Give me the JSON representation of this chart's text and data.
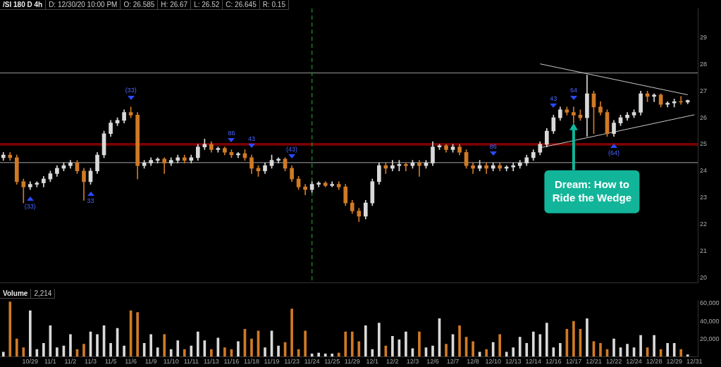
{
  "chart_data": [
    {
      "type": "candlestick",
      "title": "/SI 180 D 4h",
      "annotations": [
        "D: 12/30/20 10:00 PM",
        "O: 26.585",
        "H: 26.67",
        "L: 26.52",
        "C: 26.645",
        "R: 0.15",
        {
          "text": "(33)",
          "x": "10/29",
          "y": 23.3
        },
        {
          "text": "33",
          "x": "11/3",
          "y": 23.5
        },
        {
          "text": "(33)",
          "x": "11/6",
          "y": 26.4
        },
        {
          "text": "86",
          "x": "11/16",
          "y": 24.8
        },
        {
          "text": "43",
          "x": "11/18",
          "y": 24.6
        },
        {
          "text": "(43)",
          "x": "11/23",
          "y": 24.2
        },
        {
          "text": "86",
          "x": "12/10",
          "y": 24.3
        },
        {
          "text": "43",
          "x": "12/16",
          "y": 26.1
        },
        {
          "text": "64",
          "x": "12/17",
          "y": 26.4
        },
        {
          "text": "(64)",
          "x": "12/22",
          "y": 25.3
        },
        {
          "text": "Dream: How to Ride the Wedge",
          "x": "12/17",
          "y": 25.8
        }
      ],
      "categories": [
        null,
        null,
        null,
        null,
        "10/29",
        null,
        null,
        "11/1",
        null,
        null,
        "11/2",
        null,
        null,
        "11/3",
        null,
        null,
        "11/5",
        null,
        null,
        "11/6",
        null,
        null,
        "11/9",
        null,
        null,
        "11/10",
        null,
        null,
        "11/11",
        null,
        null,
        "11/13",
        null,
        null,
        "11/16",
        null,
        null,
        "11/18",
        null,
        null,
        "11/19",
        null,
        null,
        "11/23",
        null,
        null,
        "11/24",
        null,
        null,
        "11/25",
        null,
        null,
        "11/29",
        null,
        null,
        "12/1",
        null,
        null,
        "12/2",
        null,
        null,
        "12/3",
        null,
        null,
        "12/6",
        null,
        null,
        "12/7",
        null,
        null,
        "12/8",
        null,
        null,
        "12/10",
        null,
        null,
        "12/13",
        null,
        null,
        "12/14",
        null,
        null,
        "12/16",
        null,
        null,
        "12/17",
        null,
        null,
        "12/21",
        null,
        null,
        "12/22",
        null,
        null,
        "12/24",
        null,
        null,
        "12/28",
        null,
        null,
        "12/29",
        null,
        null,
        "12/31"
      ],
      "ohlc": [
        [
          24.5,
          24.7,
          24.4,
          24.6
        ],
        [
          24.6,
          24.7,
          24.4,
          24.5
        ],
        [
          24.5,
          24.6,
          23.5,
          23.6
        ],
        [
          23.6,
          23.7,
          22.8,
          23.4
        ],
        [
          23.4,
          23.6,
          23.3,
          23.5
        ],
        [
          23.5,
          23.6,
          23.4,
          23.55
        ],
        [
          23.55,
          23.8,
          23.4,
          23.7
        ],
        [
          23.7,
          24.0,
          23.6,
          23.9
        ],
        [
          23.9,
          24.2,
          23.8,
          24.1
        ],
        [
          24.1,
          24.3,
          24.0,
          24.2
        ],
        [
          24.2,
          24.4,
          24.1,
          24.3
        ],
        [
          24.3,
          24.4,
          23.9,
          24.0
        ],
        [
          24.0,
          24.1,
          22.9,
          23.6
        ],
        [
          23.6,
          24.1,
          23.5,
          24.0
        ],
        [
          24.0,
          24.7,
          23.9,
          24.6
        ],
        [
          24.6,
          25.5,
          24.5,
          25.4
        ],
        [
          25.4,
          25.9,
          25.3,
          25.8
        ],
        [
          25.8,
          26.0,
          25.7,
          25.9
        ],
        [
          25.9,
          26.3,
          25.8,
          26.2
        ],
        [
          26.2,
          26.4,
          26.0,
          26.1
        ],
        [
          26.1,
          26.2,
          23.7,
          24.2
        ],
        [
          24.2,
          24.4,
          24.1,
          24.3
        ],
        [
          24.3,
          24.5,
          24.2,
          24.4
        ],
        [
          24.4,
          24.5,
          24.3,
          24.45
        ],
        [
          24.45,
          24.5,
          23.9,
          24.3
        ],
        [
          24.3,
          24.5,
          24.2,
          24.4
        ],
        [
          24.4,
          24.6,
          24.3,
          24.5
        ],
        [
          24.5,
          24.6,
          24.3,
          24.4
        ],
        [
          24.4,
          24.6,
          24.3,
          24.5
        ],
        [
          24.5,
          25.0,
          24.4,
          24.9
        ],
        [
          24.9,
          25.2,
          24.8,
          25.0
        ],
        [
          25.0,
          25.1,
          24.7,
          24.8
        ],
        [
          24.8,
          24.9,
          24.7,
          24.85
        ],
        [
          24.85,
          24.9,
          24.6,
          24.7
        ],
        [
          24.7,
          24.8,
          24.5,
          24.6
        ],
        [
          24.6,
          24.7,
          24.5,
          24.65
        ],
        [
          24.65,
          24.8,
          24.4,
          24.5
        ],
        [
          24.5,
          24.6,
          23.9,
          24.1
        ],
        [
          24.1,
          24.2,
          23.8,
          24.0
        ],
        [
          24.0,
          24.3,
          23.9,
          24.2
        ],
        [
          24.2,
          24.6,
          24.1,
          24.4
        ],
        [
          24.4,
          24.5,
          24.3,
          24.45
        ],
        [
          24.45,
          24.5,
          24.0,
          24.1
        ],
        [
          24.1,
          24.2,
          23.6,
          23.7
        ],
        [
          23.7,
          23.8,
          23.3,
          23.4
        ],
        [
          23.4,
          23.5,
          23.1,
          23.3
        ],
        [
          23.3,
          23.6,
          23.2,
          23.5
        ],
        [
          23.5,
          23.6,
          23.4,
          23.55
        ],
        [
          23.55,
          23.6,
          23.4,
          23.45
        ],
        [
          23.45,
          23.6,
          23.4,
          23.5
        ],
        [
          23.5,
          23.6,
          23.3,
          23.4
        ],
        [
          23.4,
          23.5,
          22.7,
          22.8
        ],
        [
          22.8,
          22.9,
          22.4,
          22.5
        ],
        [
          22.5,
          22.6,
          22.1,
          22.3
        ],
        [
          22.3,
          22.9,
          22.2,
          22.8
        ],
        [
          22.8,
          23.7,
          22.7,
          23.6
        ],
        [
          23.6,
          24.3,
          23.5,
          24.2
        ],
        [
          24.2,
          24.3,
          23.9,
          24.1
        ],
        [
          24.1,
          24.4,
          24.0,
          24.2
        ],
        [
          24.2,
          24.4,
          24.0,
          24.25
        ],
        [
          24.25,
          24.3,
          24.0,
          24.2
        ],
        [
          24.2,
          24.4,
          24.1,
          24.3
        ],
        [
          24.3,
          24.4,
          23.8,
          24.2
        ],
        [
          24.2,
          24.4,
          24.1,
          24.3
        ],
        [
          24.3,
          25.1,
          24.2,
          24.9
        ],
        [
          24.9,
          25.0,
          24.8,
          24.95
        ],
        [
          24.95,
          25.0,
          24.7,
          24.8
        ],
        [
          24.8,
          25.0,
          24.7,
          24.9
        ],
        [
          24.9,
          25.0,
          24.6,
          24.7
        ],
        [
          24.7,
          24.8,
          24.1,
          24.2
        ],
        [
          24.2,
          24.3,
          23.9,
          24.1
        ],
        [
          24.1,
          24.4,
          24.0,
          24.2
        ],
        [
          24.2,
          24.3,
          23.9,
          24.1
        ],
        [
          24.1,
          24.3,
          24.0,
          24.2
        ],
        [
          24.2,
          24.3,
          24.0,
          24.1
        ],
        [
          24.1,
          24.2,
          24.0,
          24.15
        ],
        [
          24.15,
          24.3,
          24.0,
          24.2
        ],
        [
          24.2,
          24.4,
          24.1,
          24.3
        ],
        [
          24.3,
          24.6,
          24.2,
          24.5
        ],
        [
          24.5,
          24.8,
          24.4,
          24.7
        ],
        [
          24.7,
          25.1,
          24.6,
          25.0
        ],
        [
          25.0,
          25.6,
          24.9,
          25.5
        ],
        [
          25.5,
          26.1,
          25.4,
          26.0
        ],
        [
          26.0,
          26.4,
          25.9,
          26.3
        ],
        [
          26.3,
          26.4,
          26.1,
          26.2
        ],
        [
          26.2,
          26.4,
          25.8,
          26.1
        ],
        [
          26.1,
          26.3,
          25.9,
          26.0
        ],
        [
          26.0,
          27.6,
          25.3,
          26.9
        ],
        [
          26.9,
          27.0,
          25.4,
          26.4
        ],
        [
          26.4,
          26.6,
          26.1,
          26.2
        ],
        [
          26.2,
          26.3,
          25.3,
          25.4
        ],
        [
          25.4,
          25.9,
          25.3,
          25.8
        ],
        [
          25.8,
          26.1,
          25.7,
          26.0
        ],
        [
          26.0,
          26.2,
          25.9,
          26.1
        ],
        [
          26.1,
          26.3,
          26.0,
          26.2
        ],
        [
          26.2,
          27.0,
          26.1,
          26.9
        ],
        [
          26.9,
          27.0,
          26.6,
          26.8
        ],
        [
          26.8,
          26.9,
          26.6,
          26.85
        ],
        [
          26.85,
          26.9,
          26.4,
          26.5
        ],
        [
          26.5,
          26.6,
          26.4,
          26.55
        ],
        [
          26.55,
          26.7,
          26.4,
          26.6
        ],
        [
          26.6,
          26.8,
          26.5,
          26.585
        ],
        [
          26.585,
          26.67,
          26.52,
          26.645
        ],
        null
      ],
      "colors": [
        "#d9d9d9",
        "#d07a26",
        "#d07a26",
        "#d07a26",
        "#d9d9d9",
        "#d9d9d9",
        "#d9d9d9",
        "#d9d9d9",
        "#d9d9d9",
        "#d9d9d9",
        "#d9d9d9",
        "#d07a26",
        "#d07a26",
        "#d9d9d9",
        "#d9d9d9",
        "#d9d9d9",
        "#d9d9d9",
        "#d9d9d9",
        "#d9d9d9",
        "#d07a26",
        "#d07a26",
        "#d9d9d9",
        "#d9d9d9",
        "#d9d9d9",
        "#d07a26",
        "#d9d9d9",
        "#d9d9d9",
        "#d07a26",
        "#d9d9d9",
        "#d9d9d9",
        "#d9d9d9",
        "#d07a26",
        "#d9d9d9",
        "#d07a26",
        "#d07a26",
        "#d9d9d9",
        "#d07a26",
        "#d07a26",
        "#d07a26",
        "#d9d9d9",
        "#d9d9d9",
        "#d9d9d9",
        "#d07a26",
        "#d07a26",
        "#d07a26",
        "#d07a26",
        "#d9d9d9",
        "#d9d9d9",
        "#d07a26",
        "#d9d9d9",
        "#d07a26",
        "#d07a26",
        "#d07a26",
        "#d07a26",
        "#d9d9d9",
        "#d9d9d9",
        "#d9d9d9",
        "#d07a26",
        "#d9d9d9",
        "#d9d9d9",
        "#d07a26",
        "#d9d9d9",
        "#d07a26",
        "#d9d9d9",
        "#d9d9d9",
        "#d9d9d9",
        "#d07a26",
        "#d9d9d9",
        "#d07a26",
        "#d07a26",
        "#d07a26",
        "#d9d9d9",
        "#d07a26",
        "#d9d9d9",
        "#d07a26",
        "#d9d9d9",
        "#d9d9d9",
        "#d9d9d9",
        "#d9d9d9",
        "#d9d9d9",
        "#d9d9d9",
        "#d9d9d9",
        "#d9d9d9",
        "#d9d9d9",
        "#d07a26",
        "#d07a26",
        "#d07a26",
        "#d9d9d9",
        "#d07a26",
        "#d07a26",
        "#d07a26",
        "#d9d9d9",
        "#d9d9d9",
        "#d9d9d9",
        "#d9d9d9",
        "#d9d9d9",
        "#d07a26",
        "#d9d9d9",
        "#d07a26",
        "#d9d9d9",
        "#d9d9d9",
        "#d07a26",
        "#d9d9d9",
        "#d9d9d9"
      ],
      "series": [
        {
          "type": "line",
          "color": "#c8c8c8",
          "values": [
            null,
            null,
            null,
            null,
            null,
            null,
            null,
            null,
            null,
            null,
            null,
            null,
            null,
            null,
            null,
            null,
            null,
            null,
            null,
            null,
            null,
            null,
            null,
            null,
            null,
            null,
            null,
            null,
            null,
            null,
            null,
            null,
            null,
            null,
            null,
            null,
            null,
            null,
            null,
            null,
            null,
            null,
            null,
            null,
            null,
            null,
            null,
            null,
            null,
            null,
            null,
            null,
            null,
            null,
            null,
            null,
            null,
            null,
            null,
            null,
            null,
            null,
            null,
            null,
            null,
            null,
            null,
            null,
            null,
            null,
            null,
            null,
            null,
            null,
            null,
            null,
            null,
            null,
            null,
            null,
            28.02,
            null,
            null,
            null,
            null,
            null,
            null,
            null,
            null,
            null,
            null,
            null,
            null,
            null,
            null,
            null,
            null,
            null,
            null,
            null,
            null,
            null,
            26.86,
            null
          ]
        },
        {
          "type": "line",
          "color": "#c8c8c8",
          "values": [
            null,
            null,
            null,
            null,
            null,
            null,
            null,
            null,
            null,
            null,
            null,
            null,
            null,
            null,
            null,
            null,
            null,
            null,
            null,
            null,
            null,
            null,
            null,
            null,
            null,
            null,
            null,
            null,
            null,
            null,
            null,
            null,
            null,
            null,
            null,
            null,
            null,
            null,
            null,
            null,
            null,
            null,
            null,
            null,
            null,
            null,
            null,
            null,
            null,
            null,
            null,
            null,
            null,
            null,
            null,
            null,
            null,
            null,
            null,
            null,
            null,
            null,
            null,
            null,
            null,
            null,
            null,
            null,
            null,
            null,
            null,
            null,
            null,
            null,
            null,
            null,
            null,
            null,
            null,
            null,
            24.87,
            null,
            null,
            null,
            null,
            null,
            null,
            null,
            null,
            null,
            null,
            null,
            null,
            null,
            null,
            null,
            null,
            null,
            null,
            null,
            null,
            null,
            null,
            26.11
          ]
        }
      ],
      "bands": [
        {
          "axis": "y",
          "from": 24.95,
          "to": 25.05,
          "color": "#7a0000"
        }
      ],
      "ref_lines": [
        {
          "axis": "y",
          "value": 27.68,
          "color": "#6e6e6e"
        },
        {
          "axis": "y",
          "value": 24.32,
          "color": "#6e6e6e"
        },
        {
          "axis": "x",
          "value": "11/24",
          "color": "#1e7a1e",
          "line_style": "dashed"
        }
      ],
      "ylim": [
        19.8,
        30.1
      ],
      "yticks": [
        20,
        21,
        22,
        23,
        24,
        25,
        26,
        27,
        28,
        29
      ],
      "tick_labels": "y"
    },
    {
      "type": "bar",
      "title": "Volume",
      "annotations": [
        "2,214"
      ],
      "categories": [
        null,
        null,
        null,
        null,
        "10/29",
        null,
        null,
        "11/1",
        null,
        null,
        "11/2",
        null,
        null,
        "11/3",
        null,
        null,
        "11/5",
        null,
        null,
        "11/6",
        null,
        null,
        "11/9",
        null,
        null,
        "11/10",
        null,
        null,
        "11/11",
        null,
        null,
        "11/13",
        null,
        null,
        "11/16",
        null,
        null,
        "11/18",
        null,
        null,
        "11/19",
        null,
        null,
        "11/23",
        null,
        null,
        "11/24",
        null,
        null,
        "11/25",
        null,
        null,
        "11/29",
        null,
        null,
        "12/1",
        null,
        null,
        "12/2",
        null,
        null,
        "12/3",
        null,
        null,
        "12/6",
        null,
        null,
        "12/7",
        null,
        null,
        "12/8",
        null,
        null,
        "12/10",
        null,
        null,
        "12/13",
        null,
        null,
        "12/14",
        null,
        null,
        "12/16",
        null,
        null,
        "12/17",
        null,
        null,
        "12/21",
        null,
        null,
        "12/22",
        null,
        null,
        "12/24",
        null,
        null,
        "12/28",
        null,
        null,
        "12/29",
        null,
        null,
        "12/31"
      ],
      "values": [
        5000,
        62000,
        20000,
        10000,
        52000,
        8000,
        15000,
        35000,
        10000,
        12000,
        25000,
        8000,
        14000,
        28000,
        25000,
        35000,
        15000,
        32000,
        12000,
        52000,
        50000,
        15000,
        25000,
        10000,
        25000,
        8000,
        18000,
        8000,
        12000,
        28000,
        18000,
        8000,
        21000,
        10000,
        8000,
        17000,
        31000,
        20000,
        29000,
        10000,
        29000,
        12000,
        16000,
        54000,
        8000,
        29000,
        3000,
        4000,
        3000,
        3000,
        4000,
        28000,
        28000,
        17000,
        35000,
        8000,
        38000,
        12000,
        23000,
        19000,
        28000,
        9000,
        28000,
        10000,
        12000,
        43000,
        14000,
        25000,
        35000,
        22000,
        17000,
        5000,
        8000,
        16000,
        25000,
        5000,
        10000,
        22000,
        15000,
        28000,
        25000,
        38000,
        10000,
        15000,
        31000,
        40000,
        31000,
        43000,
        17000,
        15000,
        8000,
        20000,
        10000,
        14000,
        10000,
        24000,
        10000,
        24000,
        8000,
        15000,
        15000,
        8000,
        2000,
        null
      ],
      "colors": [
        "#d9d9d9",
        "#d07a26",
        "#d07a26",
        "#d07a26",
        "#d9d9d9",
        "#d9d9d9",
        "#d9d9d9",
        "#d9d9d9",
        "#d9d9d9",
        "#d9d9d9",
        "#d9d9d9",
        "#d07a26",
        "#d07a26",
        "#d9d9d9",
        "#d9d9d9",
        "#d9d9d9",
        "#d9d9d9",
        "#d9d9d9",
        "#d9d9d9",
        "#d07a26",
        "#d07a26",
        "#d9d9d9",
        "#d9d9d9",
        "#d9d9d9",
        "#d07a26",
        "#d9d9d9",
        "#d9d9d9",
        "#d07a26",
        "#d9d9d9",
        "#d9d9d9",
        "#d9d9d9",
        "#d07a26",
        "#d9d9d9",
        "#d07a26",
        "#d07a26",
        "#d9d9d9",
        "#d07a26",
        "#d07a26",
        "#d07a26",
        "#d9d9d9",
        "#d9d9d9",
        "#d9d9d9",
        "#d07a26",
        "#d07a26",
        "#d07a26",
        "#d07a26",
        "#d9d9d9",
        "#d9d9d9",
        "#d9d9d9",
        "#d9d9d9",
        "#d07a26",
        "#d07a26",
        "#d07a26",
        "#d07a26",
        "#d9d9d9",
        "#d9d9d9",
        "#d9d9d9",
        "#d07a26",
        "#d9d9d9",
        "#d9d9d9",
        "#d9d9d9",
        "#d9d9d9",
        "#d07a26",
        "#d9d9d9",
        "#d9d9d9",
        "#d9d9d9",
        "#d07a26",
        "#d9d9d9",
        "#d07a26",
        "#d07a26",
        "#d07a26",
        "#d9d9d9",
        "#d07a26",
        "#d9d9d9",
        "#d07a26",
        "#d9d9d9",
        "#d9d9d9",
        "#d9d9d9",
        "#d9d9d9",
        "#d9d9d9",
        "#d9d9d9",
        "#d9d9d9",
        "#d9d9d9",
        "#d9d9d9",
        "#d07a26",
        "#d07a26",
        "#d07a26",
        "#d9d9d9",
        "#d07a26",
        "#d07a26",
        "#d07a26",
        "#d9d9d9",
        "#d9d9d9",
        "#d9d9d9",
        "#d9d9d9",
        "#d9d9d9",
        "#d07a26",
        "#d9d9d9",
        "#d07a26",
        "#d9d9d9",
        "#d9d9d9",
        "#d07a26",
        "#d9d9d9",
        "#d9d9d9"
      ],
      "ylim": [
        0,
        64000
      ],
      "yticks": [
        {
          "value": 20000,
          "label": "20,000"
        },
        {
          "value": 40000,
          "label": "40,000"
        },
        {
          "value": 60000,
          "label": "60,000"
        }
      ]
    }
  ]
}
